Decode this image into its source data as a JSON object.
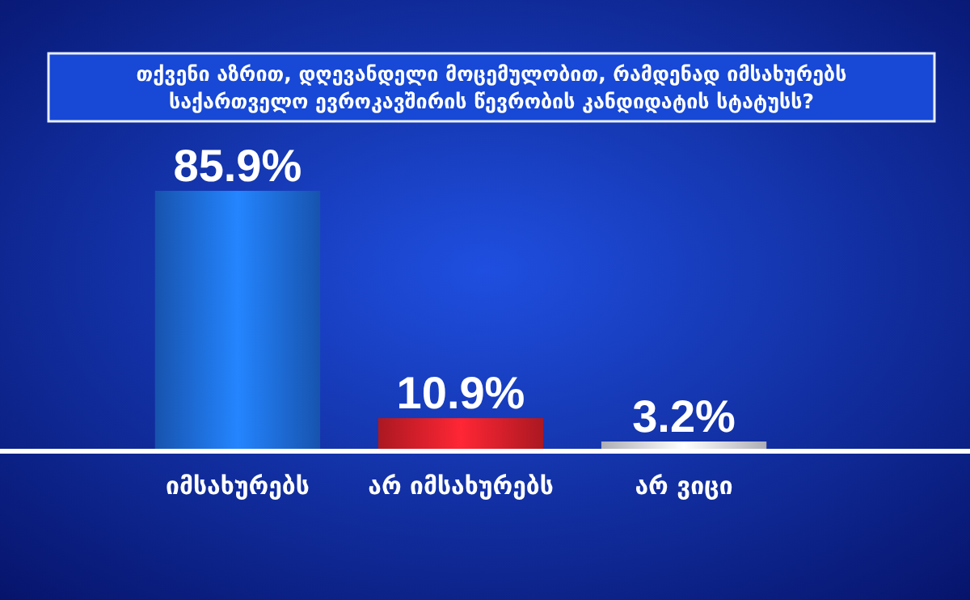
{
  "chart_data": {
    "type": "bar",
    "title": "თქვენი აზრით, დღევანდელი მოცემულობით, რამდენად იმსახურებს საქართველო ევროკავშირის წევრობის კანდიდატის სტატუსს?",
    "categories": [
      "იმსახურებს",
      "არ იმსახურებს",
      "არ ვიცი"
    ],
    "values": [
      85.9,
      10.9,
      3.2
    ],
    "colors": [
      "#1e6fe8",
      "#e3202c",
      "#e6e8f2"
    ],
    "value_labels": [
      "85.9%",
      "10.9%",
      "3.2%"
    ]
  }
}
